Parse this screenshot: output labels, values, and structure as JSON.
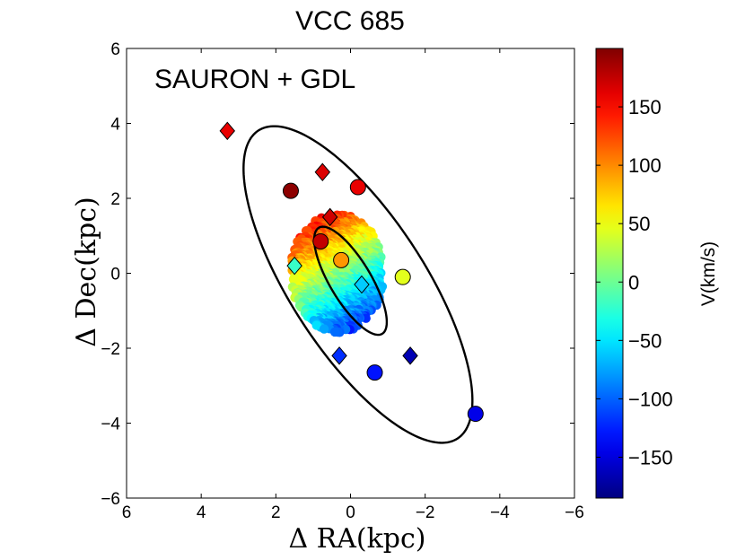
{
  "chart_data": {
    "type": "scatter",
    "title": "VCC 685",
    "annotation": "SAURON + GDL",
    "xlabel": "Δ RA(kpc)",
    "ylabel": "Δ Dec(kpc)",
    "xlim": [
      6,
      -6
    ],
    "ylim": [
      -6,
      6
    ],
    "x_reversed": true,
    "xticks": [
      6,
      4,
      2,
      0,
      -2,
      -4,
      -6
    ],
    "xtick_labels": [
      "6",
      "4",
      "2",
      "0",
      "−2",
      "−4",
      "−6"
    ],
    "yticks": [
      6,
      4,
      2,
      0,
      -2,
      -4,
      -6
    ],
    "ytick_labels": [
      "6",
      "4",
      "2",
      "0",
      "−2",
      "−4",
      "−6"
    ],
    "colorbar": {
      "label": "V(km/s)",
      "range": [
        -185,
        200
      ],
      "ticks": [
        150,
        100,
        50,
        0,
        -50,
        -100,
        -150
      ],
      "tick_labels": [
        "150",
        "100",
        "50",
        "0",
        "−50",
        "−100",
        "−150"
      ]
    },
    "ellipses": [
      {
        "name": "outer",
        "center": [
          -0.2,
          -0.3
        ],
        "semi_major": 4.9,
        "semi_minor": 1.8,
        "angle_deg": 57
      },
      {
        "name": "inner",
        "center": [
          0.0,
          -0.2
        ],
        "semi_major": 1.65,
        "semi_minor": 0.55,
        "angle_deg": 59
      }
    ],
    "sauron_field": {
      "description": "dense 2D velocity field",
      "x_range": [
        -0.9,
        1.6
      ],
      "y_range": [
        -1.6,
        1.6
      ],
      "v_range": [
        -150,
        190
      ]
    },
    "gdl_points": [
      {
        "marker": "diamond",
        "x": 3.3,
        "y": 3.8,
        "v": 160
      },
      {
        "marker": "diamond",
        "x": 0.75,
        "y": 2.7,
        "v": 165
      },
      {
        "marker": "diamond",
        "x": 0.55,
        "y": 1.5,
        "v": 170
      },
      {
        "marker": "diamond",
        "x": 1.5,
        "y": 0.2,
        "v": -20
      },
      {
        "marker": "diamond",
        "x": -0.3,
        "y": -0.3,
        "v": -60
      },
      {
        "marker": "diamond",
        "x": 0.3,
        "y": -2.2,
        "v": -120
      },
      {
        "marker": "diamond",
        "x": -1.6,
        "y": -2.2,
        "v": -165
      },
      {
        "marker": "circle",
        "x": 1.6,
        "y": 2.2,
        "v": 195
      },
      {
        "marker": "circle",
        "x": -0.2,
        "y": 2.3,
        "v": 160
      },
      {
        "marker": "circle",
        "x": 0.25,
        "y": 0.35,
        "v": 95
      },
      {
        "marker": "circle",
        "x": -1.4,
        "y": -0.1,
        "v": 45
      },
      {
        "marker": "circle",
        "x": 0.8,
        "y": 0.85,
        "v": 175
      },
      {
        "marker": "circle",
        "x": -0.65,
        "y": -2.65,
        "v": -130
      },
      {
        "marker": "circle",
        "x": -3.35,
        "y": -3.75,
        "v": -145
      }
    ]
  }
}
